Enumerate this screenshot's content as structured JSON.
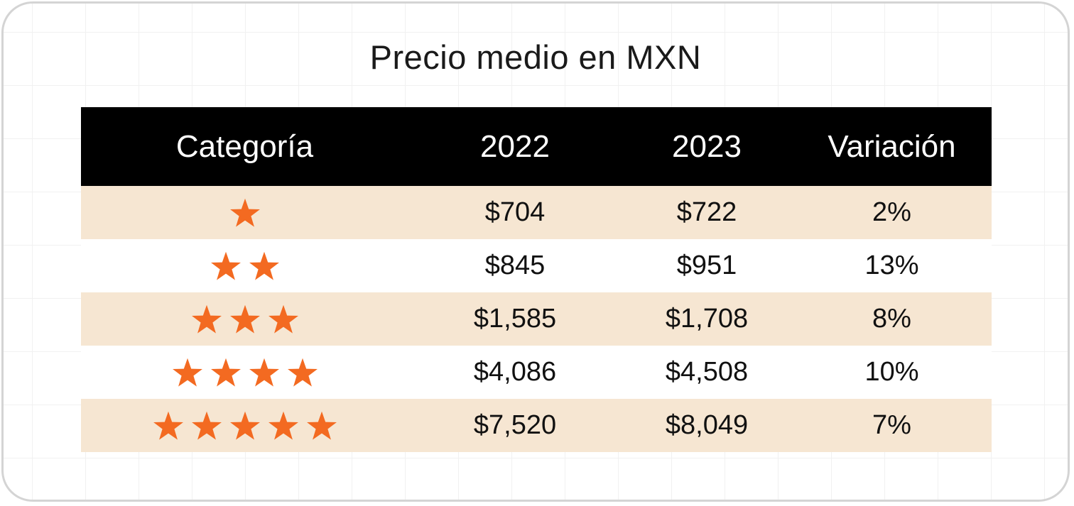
{
  "title": "Precio medio en MXN",
  "colors": {
    "header_bg": "#000000",
    "row_shaded": "#f6e6d2",
    "star": "#f36a21"
  },
  "table": {
    "headers": [
      "Categoría",
      "2022",
      "2023",
      "Variación"
    ],
    "rows": [
      {
        "stars": 1,
        "y2022": "$704",
        "y2023": "$722",
        "variation": "2%"
      },
      {
        "stars": 2,
        "y2022": "$845",
        "y2023": "$951",
        "variation": "13%"
      },
      {
        "stars": 3,
        "y2022": "$1,585",
        "y2023": "$1,708",
        "variation": "8%"
      },
      {
        "stars": 4,
        "y2022": "$4,086",
        "y2023": "$4,508",
        "variation": "10%"
      },
      {
        "stars": 5,
        "y2022": "$7,520",
        "y2023": "$8,049",
        "variation": "7%"
      }
    ]
  }
}
